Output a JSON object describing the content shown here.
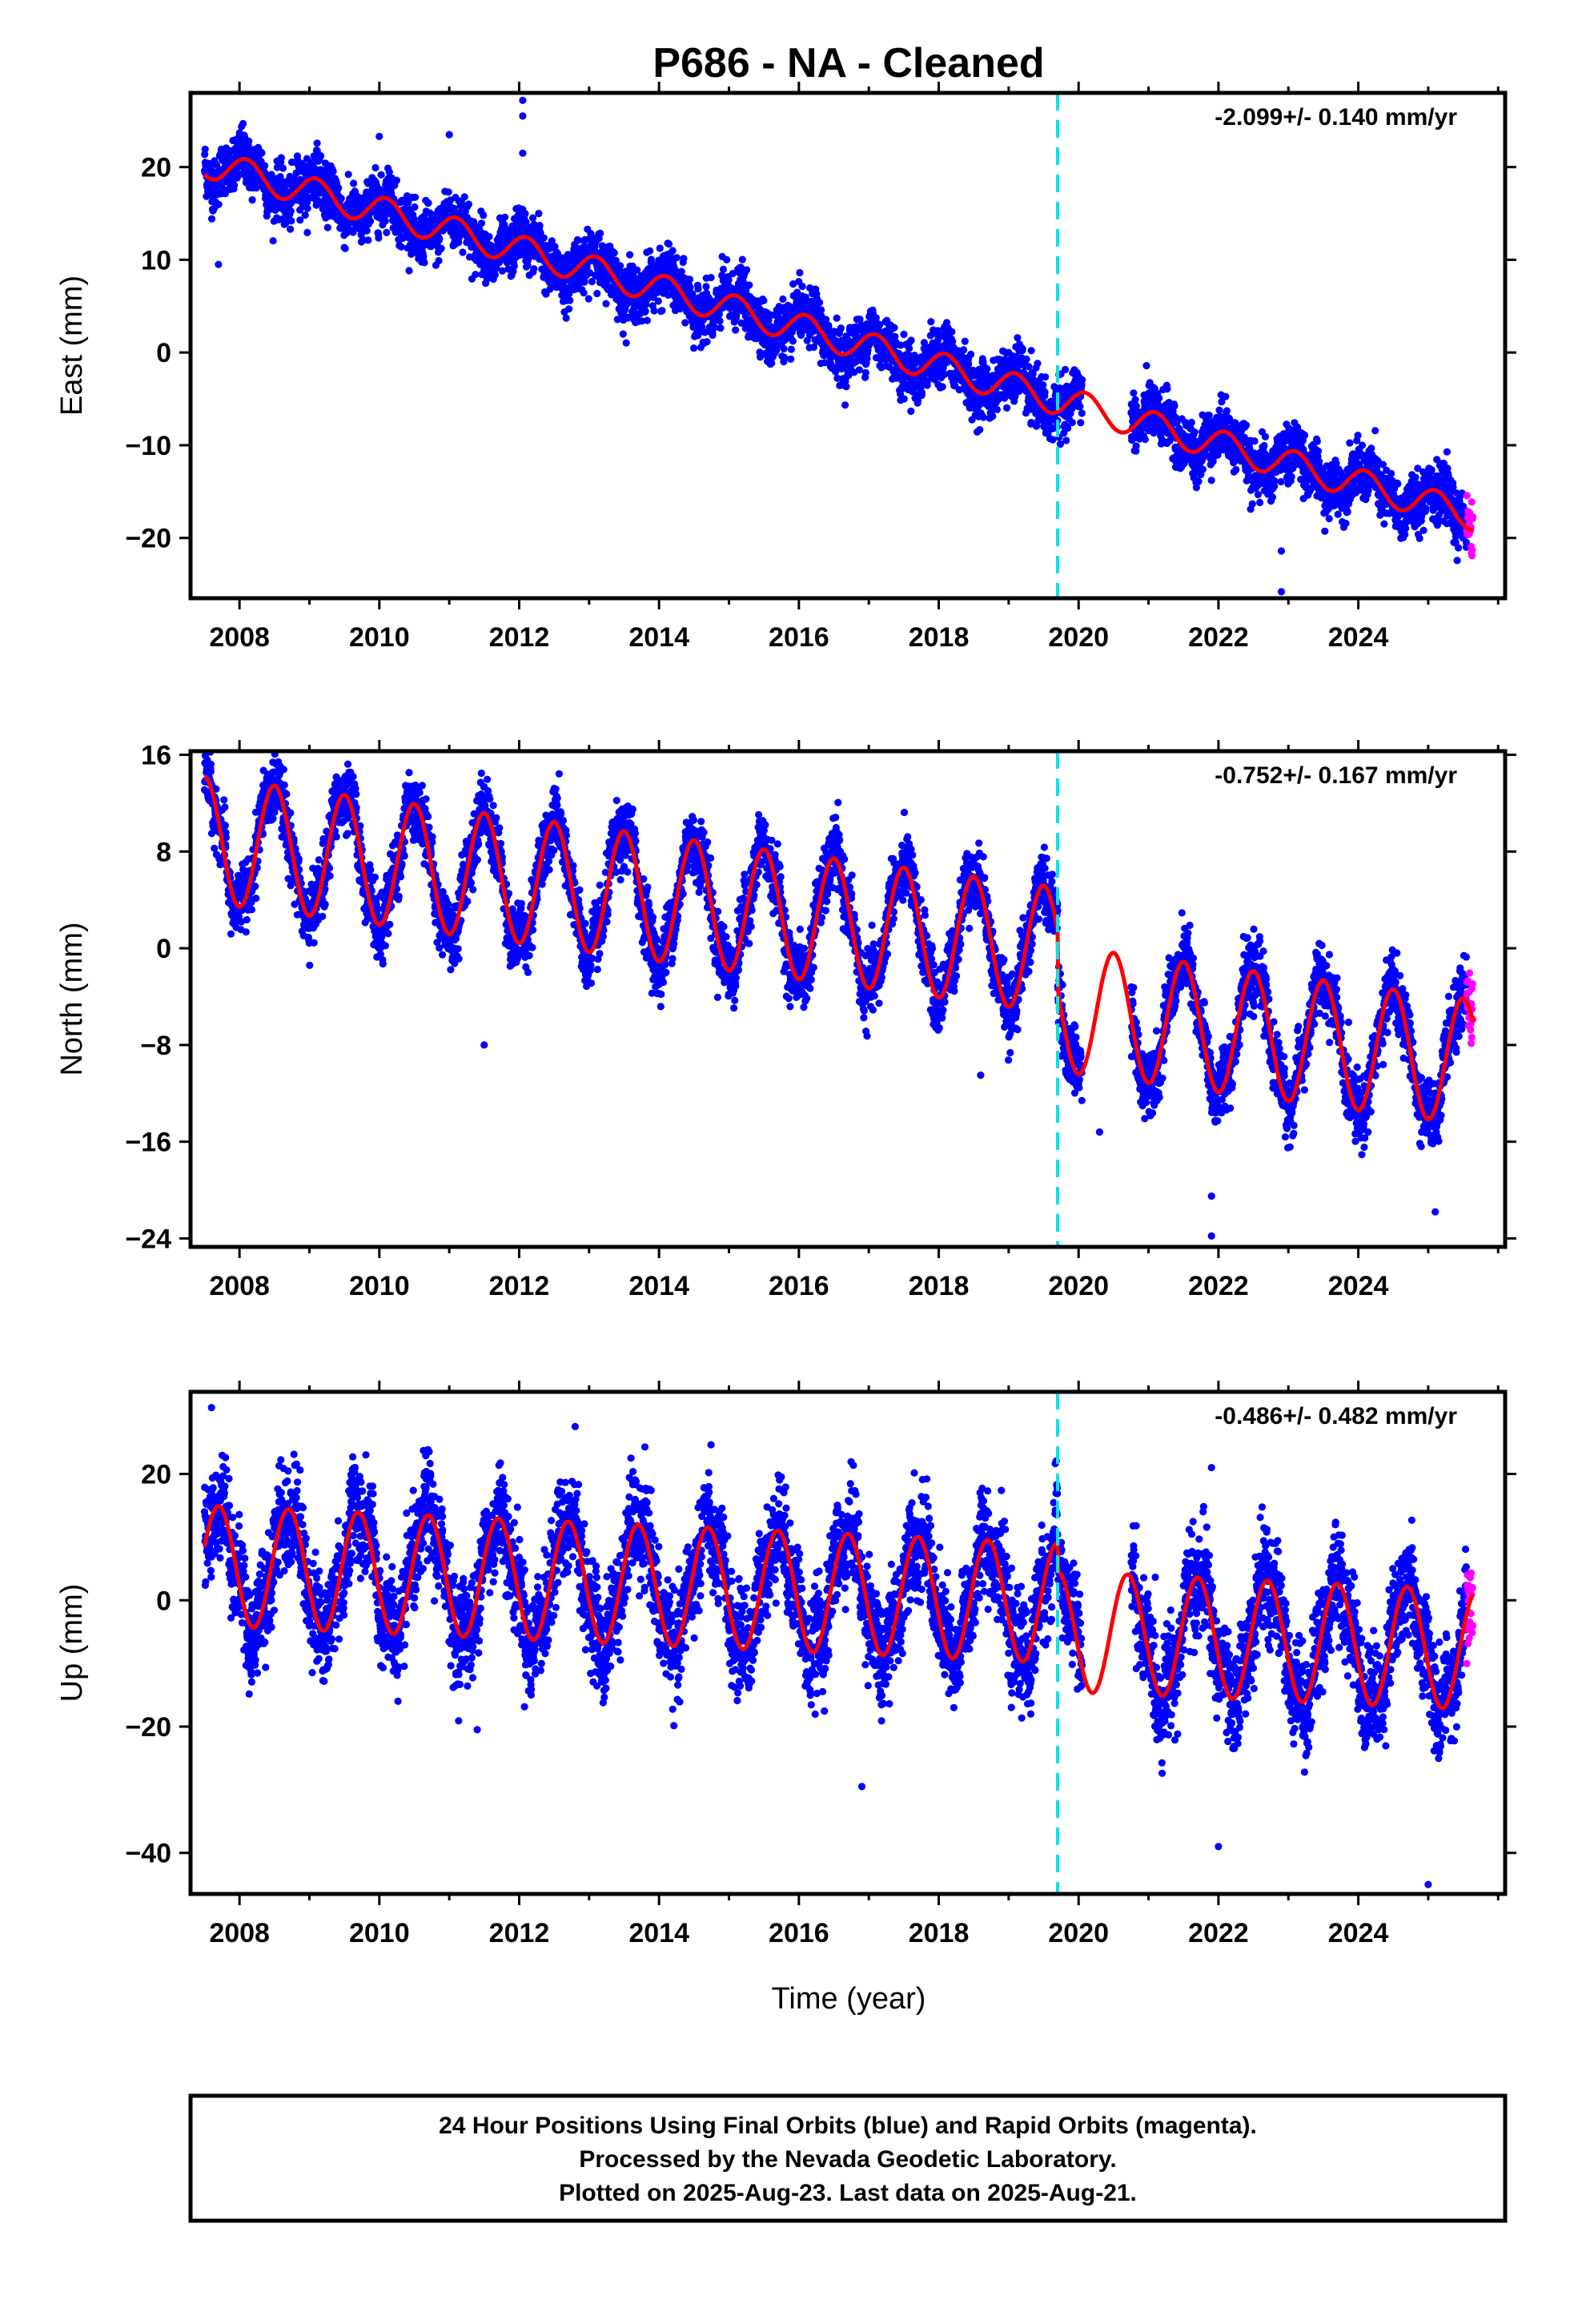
{
  "title": "P686  - NA - Cleaned",
  "xlabel": "Time (year)",
  "footer": {
    "lines": [
      "24 Hour Positions Using Final Orbits (blue) and Rapid Orbits (magenta).",
      "Processed by the Nevada Geodetic Laboratory.",
      "Plotted on 2025-Aug-23. Last data on 2025-Aug-21."
    ]
  },
  "colors": {
    "final_orbits": "#0000ff",
    "rapid_orbits": "#ff00ff",
    "model": "#ff0000",
    "event_line": "#00e5e5",
    "frame": "#000000"
  },
  "chart_data": [
    {
      "type": "scatter",
      "panel": "east",
      "ylabel": "East (mm)",
      "rate_text": "-2.099+/- 0.140 mm/yr",
      "xlim": [
        2007.3,
        2026.1
      ],
      "ylim": [
        -26.5,
        28
      ],
      "x_ticks": [
        "2008",
        "2010",
        "2012",
        "2014",
        "2016",
        "2018",
        "2020",
        "2022",
        "2024"
      ],
      "y_ticks": [
        -20,
        -10,
        0,
        10,
        20
      ],
      "event_lines": [
        2019.7
      ],
      "data_start": 2007.5,
      "data_end": 2025.64,
      "rapid_start": 2025.55,
      "gaps": [
        [
          2020.05,
          2020.75
        ]
      ],
      "model": {
        "rate": -2.099,
        "intercept_at_2007_5": 20.5,
        "annual_amp": 1.6,
        "annual_peak_frac": 0.1,
        "offsets": []
      },
      "scatter_std": 1.4,
      "outliers": [
        [
          2012.05,
          27.2
        ],
        [
          2012.05,
          25.5
        ],
        [
          2012.05,
          21.5
        ],
        [
          2011.0,
          23.5
        ],
        [
          2010.0,
          23.3
        ],
        [
          2007.7,
          9.5
        ],
        [
          2022.9,
          -25.8
        ],
        [
          2022.9,
          -21.4
        ],
        [
          2024.85,
          -12.5
        ]
      ]
    },
    {
      "type": "scatter",
      "panel": "north",
      "ylabel": "North (mm)",
      "rate_text": "-0.752+/- 0.167 mm/yr",
      "xlim": [
        2007.3,
        2026.1
      ],
      "ylim": [
        -24.7,
        16.3
      ],
      "x_ticks": [
        "2008",
        "2010",
        "2012",
        "2014",
        "2016",
        "2018",
        "2020",
        "2022",
        "2024"
      ],
      "y_ticks": [
        -24,
        -16,
        -8,
        0,
        8,
        16
      ],
      "event_lines": [
        2019.7
      ],
      "data_start": 2007.5,
      "data_end": 2025.64,
      "rapid_start": 2025.55,
      "gaps": [
        [
          2020.05,
          2020.75
        ]
      ],
      "model": {
        "rate": -0.752,
        "intercept_at_2007_5": 9.0,
        "annual_amp": 5.2,
        "annual_peak_frac": 0.5,
        "offsets": [
          [
            2019.7,
            -4.8
          ]
        ]
      },
      "scatter_std": 1.3,
      "outliers": [
        [
          2011.5,
          -8.0
        ],
        [
          2021.9,
          -23.8
        ],
        [
          2021.9,
          -20.5
        ],
        [
          2025.1,
          -21.8
        ],
        [
          2018.6,
          -10.5
        ],
        [
          2020.3,
          -15.2
        ]
      ]
    },
    {
      "type": "scatter",
      "panel": "up",
      "ylabel": "Up (mm)",
      "rate_text": "-0.486+/- 0.482 mm/yr",
      "xlim": [
        2007.3,
        2026.1
      ],
      "ylim": [
        -46.5,
        33
      ],
      "x_ticks": [
        "2008",
        "2010",
        "2012",
        "2014",
        "2016",
        "2018",
        "2020",
        "2022",
        "2024"
      ],
      "y_ticks": [
        -40,
        -20,
        0,
        20
      ],
      "event_lines": [
        2019.7
      ],
      "data_start": 2007.5,
      "data_end": 2025.64,
      "rapid_start": 2025.55,
      "gaps": [
        [
          2020.05,
          2020.75
        ]
      ],
      "model": {
        "rate": -0.486,
        "intercept_at_2007_5": 5.5,
        "annual_amp": 9.5,
        "annual_peak_frac": 0.7,
        "offsets": [
          [
            2019.7,
            -4.5
          ]
        ]
      },
      "scatter_std": 4.0,
      "outliers": [
        [
          2022.0,
          -39.0
        ],
        [
          2025.0,
          -45.0
        ],
        [
          2021.9,
          21.0
        ],
        [
          2016.9,
          -29.5
        ],
        [
          2011.4,
          -20.5
        ],
        [
          2012.8,
          27.5
        ],
        [
          2007.6,
          30.5
        ]
      ]
    }
  ]
}
